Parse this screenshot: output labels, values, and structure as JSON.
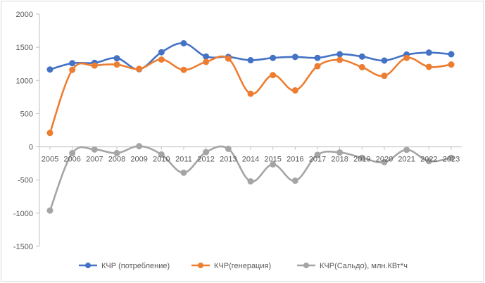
{
  "chart_data": {
    "type": "line",
    "title": "",
    "xlabel": "",
    "ylabel": "",
    "categories": [
      "2005",
      "2006",
      "2007",
      "2008",
      "2009",
      "2010",
      "2011",
      "2012",
      "2013",
      "2014",
      "2015",
      "2016",
      "2017",
      "2018",
      "2019",
      "2020",
      "2021",
      "2022",
      "2023"
    ],
    "ylim": [
      -1500,
      2000
    ],
    "yticks": [
      2000,
      1500,
      1000,
      500,
      0,
      -500,
      -1000,
      -1500
    ],
    "grid": false,
    "legend": "bottom",
    "series": [
      {
        "name": "КЧР (потребление)",
        "color": "#4472C4",
        "values": [
          1165,
          1260,
          1265,
          1335,
          1170,
          1425,
          1560,
          1360,
          1355,
          1305,
          1340,
          1355,
          1340,
          1395,
          1360,
          1300,
          1390,
          1420,
          1395
        ]
      },
      {
        "name": "КЧР(генерация)",
        "color": "#ED7D31",
        "values": [
          210,
          1160,
          1225,
          1240,
          1175,
          1315,
          1160,
          1280,
          1330,
          800,
          1080,
          850,
          1215,
          1310,
          1200,
          1070,
          1340,
          1205,
          1240
        ]
      },
      {
        "name": "КЧР(Сальдо), млн.КВт*ч",
        "color": "#A5A5A5",
        "values": [
          -960,
          -95,
          -40,
          -95,
          10,
          -115,
          -390,
          -80,
          -30,
          -520,
          -265,
          -510,
          -120,
          -85,
          -165,
          -230,
          -45,
          -215,
          -165
        ]
      }
    ]
  }
}
